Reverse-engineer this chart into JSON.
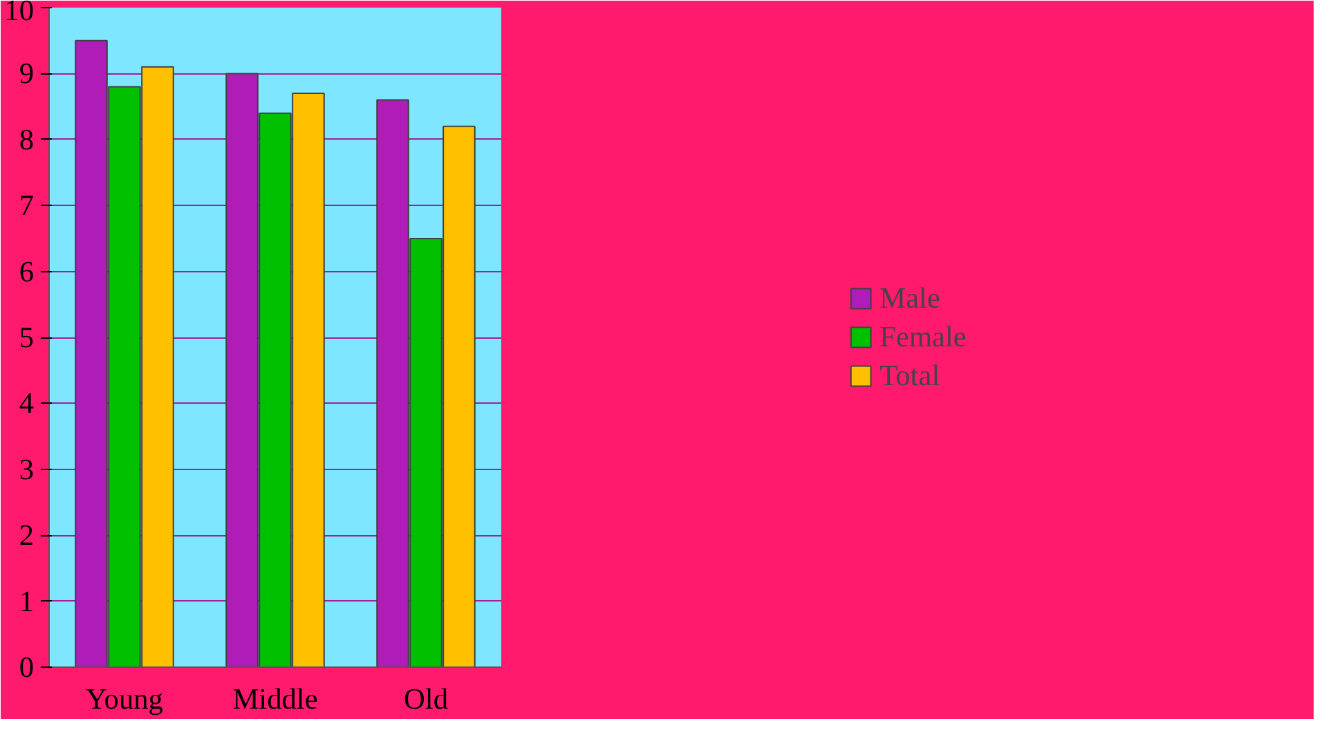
{
  "chart_data": {
    "type": "bar",
    "categories": [
      "Young",
      "Middle",
      "Old"
    ],
    "series": [
      {
        "name": "Male",
        "color": "#b01cb8",
        "values": [
          9.5,
          9.0,
          8.6
        ]
      },
      {
        "name": "Female",
        "color": "#00c000",
        "values": [
          8.8,
          8.4,
          6.5
        ]
      },
      {
        "name": "Total",
        "color": "#ffc000",
        "values": [
          9.1,
          8.7,
          8.2
        ]
      }
    ],
    "ylim": [
      0,
      10
    ],
    "yticks": [
      0,
      1,
      2,
      3,
      4,
      5,
      6,
      7,
      8,
      9,
      10
    ],
    "grid": "y",
    "legend": "right"
  }
}
